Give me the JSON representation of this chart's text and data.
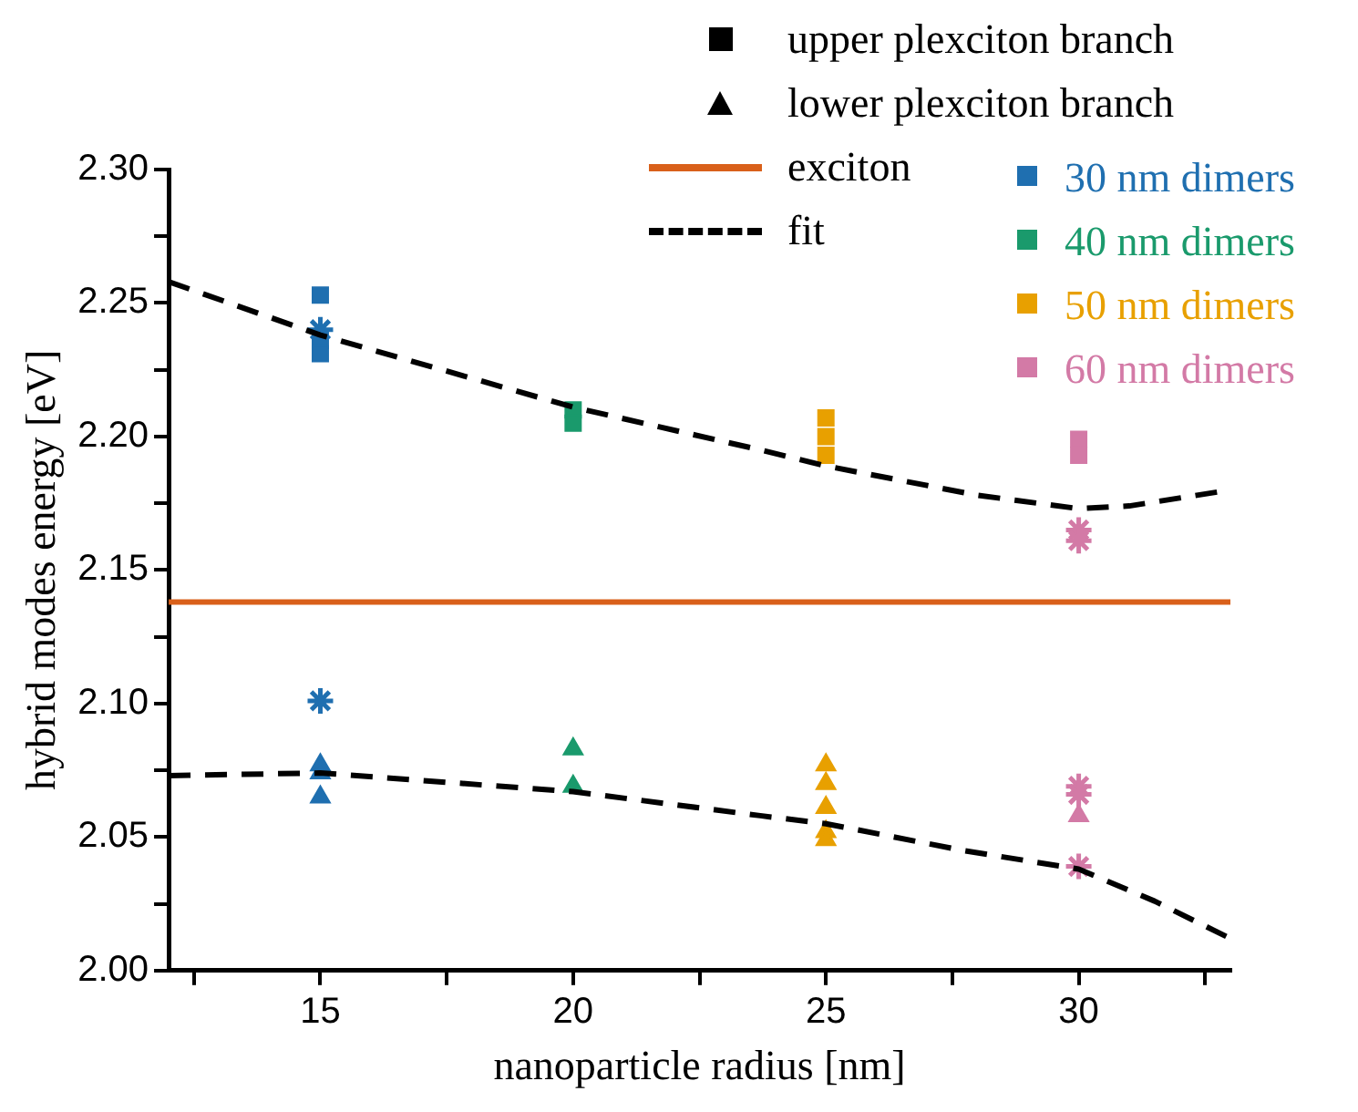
{
  "chart_data": {
    "type": "scatter",
    "xlabel": "nanoparticle radius [nm]",
    "ylabel": "hybrid modes energy [eV]",
    "xlim": [
      12,
      33
    ],
    "ylim": [
      2.0,
      2.3
    ],
    "xticks": [
      {
        "value": 12.5,
        "label": null
      },
      15,
      {
        "value": 17.5,
        "label": null
      },
      20,
      {
        "value": 22.5,
        "label": null
      },
      25,
      {
        "value": 27.5,
        "label": null
      },
      30,
      {
        "value": 32.5,
        "label": null
      }
    ],
    "yticks": [
      {
        "value": 2.0,
        "label": "2.00"
      },
      {
        "value": 2.025,
        "label": null
      },
      2.05,
      {
        "value": 2.075,
        "label": null
      },
      {
        "value": 2.1,
        "label": "2.10"
      },
      {
        "value": 2.125,
        "label": null
      },
      2.15,
      {
        "value": 2.175,
        "label": null
      },
      {
        "value": 2.2,
        "label": "2.20"
      },
      {
        "value": 2.225,
        "label": null
      },
      2.25,
      {
        "value": 2.275,
        "label": null
      },
      {
        "value": 2.3,
        "label": "2.30"
      }
    ],
    "legend": "top right",
    "ref_lines": [
      {
        "axis": "y",
        "value": 2.138,
        "label": "exciton",
        "color": "#d9601a"
      }
    ],
    "series": [
      {
        "name": "upper plexciton branch",
        "color": "#000000",
        "marker": "square"
      },
      {
        "name": "lower plexciton branch",
        "color": "#000000",
        "marker": "triangle"
      },
      {
        "name": "fit",
        "type": "line",
        "color": "#000000",
        "line_style": "dashed",
        "marker": "none",
        "x": [
          12,
          15,
          20,
          23.7,
          25,
          28,
          30,
          31,
          33
        ],
        "values": [
          2.258,
          2.238,
          2.211,
          2.195,
          2.189,
          2.178,
          2.173,
          2.174,
          2.18
        ]
      },
      {
        "type": "line",
        "color": "#000000",
        "line_style": "dashed",
        "marker": "none",
        "x": [
          12,
          15,
          20,
          23.7,
          25,
          27.7,
          30,
          31.5,
          33
        ],
        "values": [
          2.073,
          2.074,
          2.067,
          2.058,
          2.055,
          2.045,
          2.038,
          2.026,
          2.012
        ]
      },
      {
        "name": "30 nm dimers",
        "color": "#1f6fb0",
        "marker": "square",
        "x": [
          15,
          15,
          15
        ],
        "values": [
          2.253,
          2.236,
          2.231
        ]
      },
      {
        "color": "#1f6fb0",
        "marker": "triangle",
        "x": [
          15,
          15,
          15
        ],
        "values": [
          2.077,
          2.074,
          2.065
        ]
      },
      {
        "color": "#1f6fb0",
        "marker": "cross",
        "x": [
          15,
          15
        ],
        "values": [
          2.24,
          2.101
        ]
      },
      {
        "name": "40 nm dimers",
        "color": "#1a9a6c",
        "marker": "square",
        "x": [
          20,
          20
        ],
        "values": [
          2.21,
          2.205
        ]
      },
      {
        "color": "#1a9a6c",
        "marker": "triangle",
        "x": [
          20,
          20
        ],
        "values": [
          2.083,
          2.069
        ]
      },
      {
        "name": "50 nm dimers",
        "color": "#e8a000",
        "marker": "square",
        "x": [
          25,
          25,
          25
        ],
        "values": [
          2.207,
          2.2,
          2.193
        ]
      },
      {
        "color": "#e8a000",
        "marker": "triangle",
        "x": [
          25,
          25,
          25,
          25,
          25
        ],
        "values": [
          2.077,
          2.07,
          2.061,
          2.052,
          2.049
        ]
      },
      {
        "name": "60 nm dimers",
        "color": "#d37aa6",
        "marker": "square",
        "x": [
          30,
          30
        ],
        "values": [
          2.199,
          2.193
        ]
      },
      {
        "color": "#d37aa6",
        "marker": "triangle",
        "x": [
          30
        ],
        "values": [
          2.058
        ]
      },
      {
        "color": "#d37aa6",
        "marker": "cross",
        "x": [
          30,
          30,
          30,
          30,
          30
        ],
        "values": [
          2.165,
          2.161,
          2.069,
          2.066,
          2.039
        ]
      }
    ]
  }
}
